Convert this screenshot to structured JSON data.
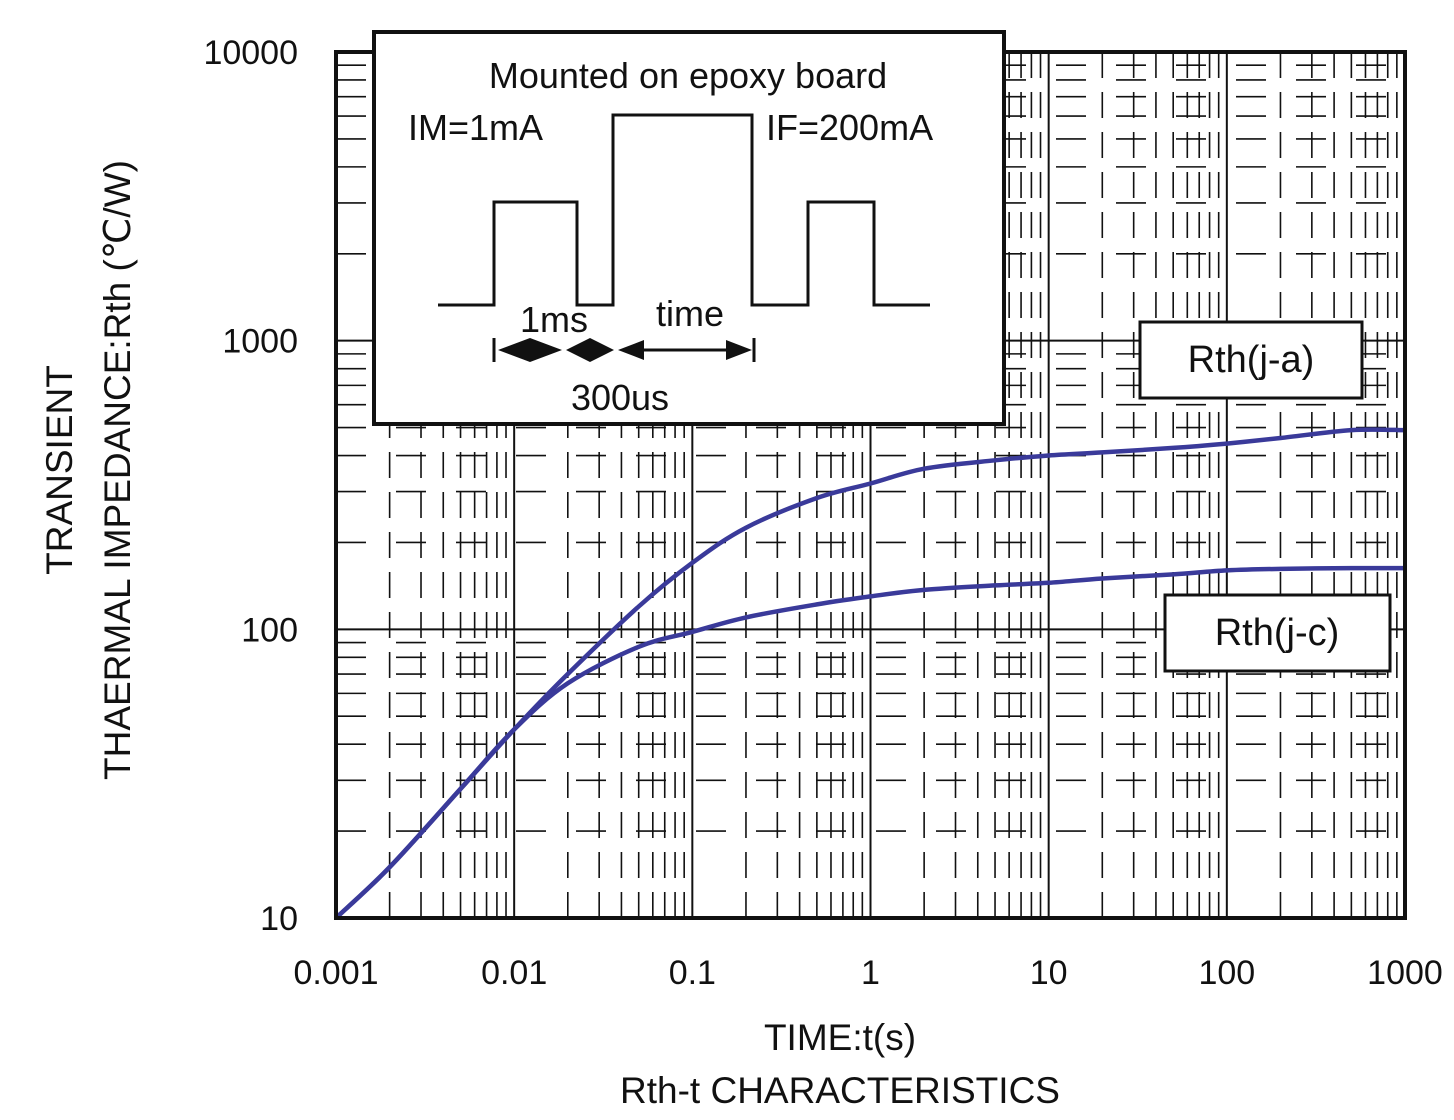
{
  "chart_data": {
    "type": "line",
    "title": "Rth-t CHARACTERISTICS",
    "xlabel": "TIME:t(s)",
    "ylabel_line1": "TRANSIENT",
    "ylabel_line2": "THAERMAL IMPEDANCE:Rth (℃/W)",
    "x_scale": "log",
    "y_scale": "log",
    "xlim": [
      0.001,
      1000
    ],
    "ylim": [
      10,
      10000
    ],
    "x_ticks": [
      0.001,
      0.01,
      0.1,
      1,
      10,
      100,
      1000
    ],
    "x_tick_labels": [
      "0.001",
      "0.01",
      "0.1",
      "1",
      "10",
      "100",
      "1000"
    ],
    "y_ticks": [
      10,
      100,
      1000,
      10000
    ],
    "y_tick_labels": [
      "10",
      "100",
      "1000",
      "10000"
    ],
    "grid": true,
    "series": [
      {
        "name": "Rth(j-a)",
        "x": [
          0.001,
          0.002,
          0.005,
          0.01,
          0.02,
          0.05,
          0.1,
          0.2,
          0.5,
          1,
          2,
          5,
          10,
          20,
          50,
          100,
          200,
          500,
          1000
        ],
        "y": [
          10,
          15,
          28,
          45,
          70,
          120,
          170,
          225,
          285,
          320,
          360,
          385,
          400,
          410,
          425,
          440,
          460,
          490,
          490
        ]
      },
      {
        "name": "Rth(j-c)",
        "x": [
          0.001,
          0.002,
          0.005,
          0.01,
          0.02,
          0.05,
          0.1,
          0.2,
          0.5,
          1,
          2,
          5,
          10,
          20,
          50,
          100,
          200,
          500,
          1000
        ],
        "y": [
          10,
          15,
          28,
          45,
          65,
          87,
          98,
          110,
          122,
          130,
          137,
          142,
          145,
          150,
          155,
          160,
          162,
          163,
          163
        ]
      }
    ],
    "inset": {
      "title": "Mounted on epoxy board",
      "im_label": "IM=1mA",
      "if_label": "IF=200mA",
      "pulse_label": "1ms",
      "gap_label": "300us",
      "time_label": "time"
    },
    "colors": {
      "curve": "#3a3a9a",
      "grid": "#111111",
      "text": "#111111"
    }
  }
}
